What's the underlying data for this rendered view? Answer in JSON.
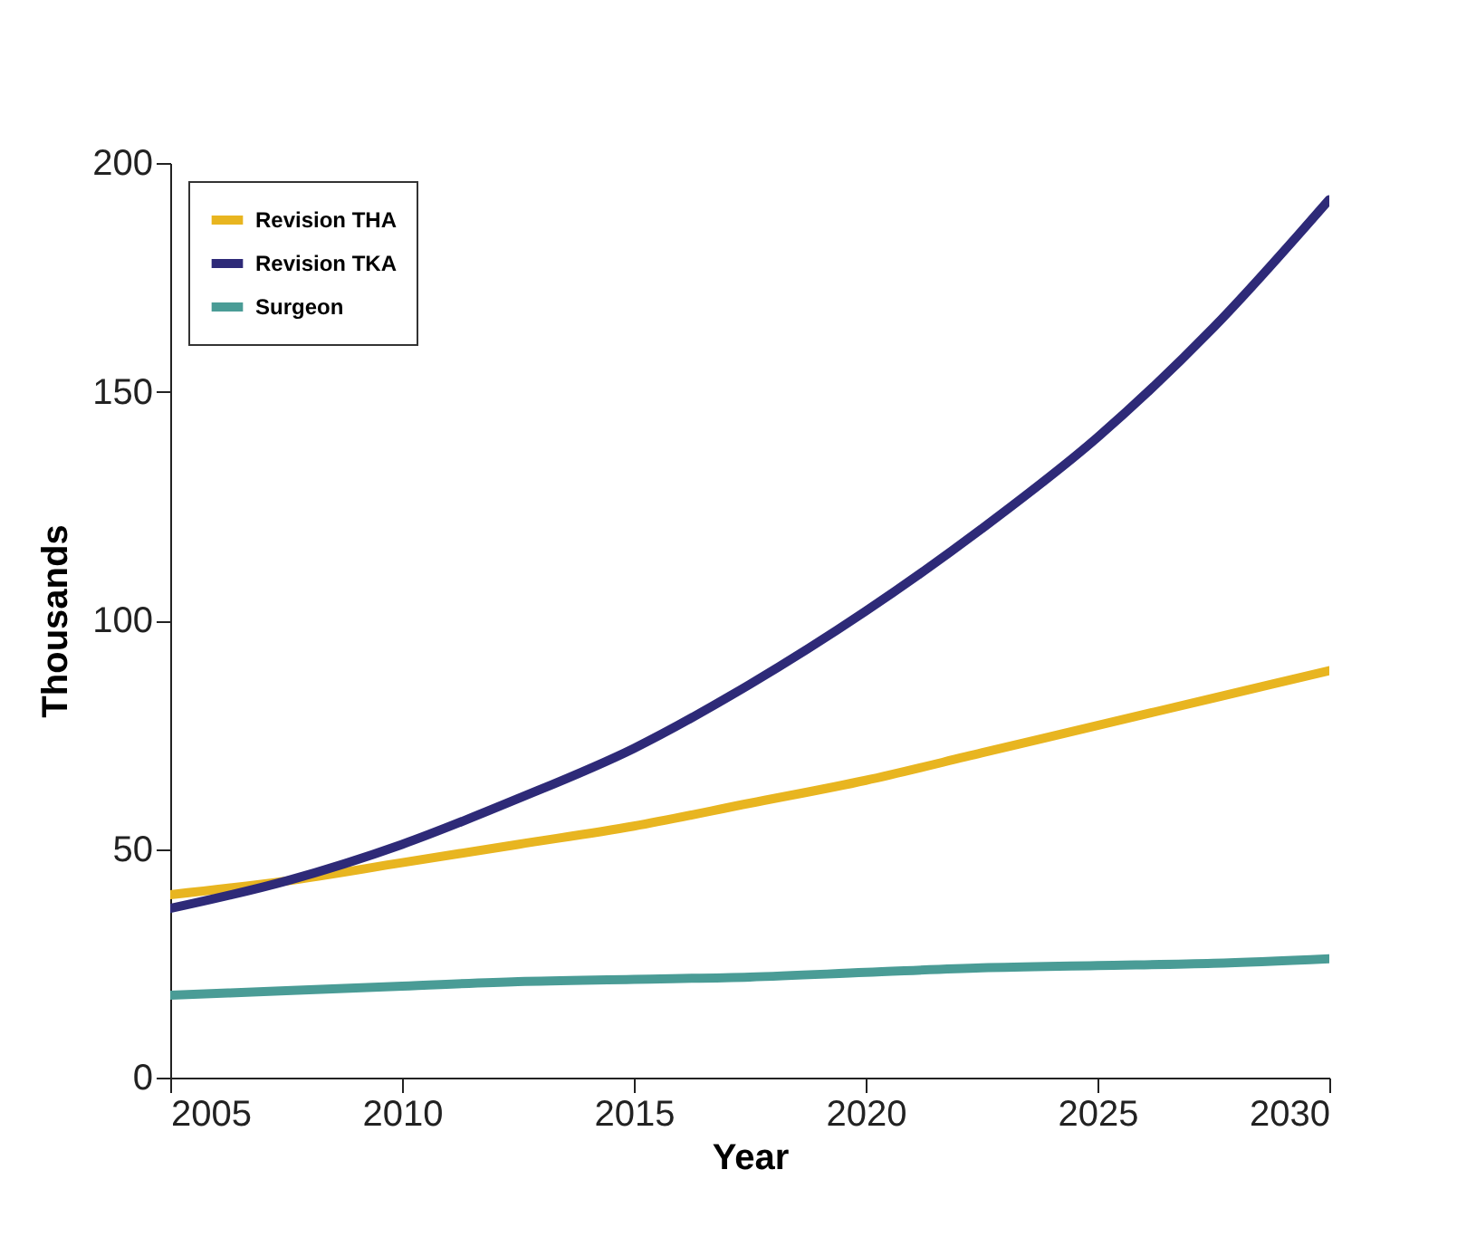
{
  "chart_data": {
    "type": "line",
    "xlabel": "Year",
    "ylabel": "Thousands",
    "x": [
      2005,
      2007.5,
      2010,
      2012.5,
      2015,
      2017.5,
      2020,
      2022.5,
      2025,
      2027.5,
      2030
    ],
    "series": [
      {
        "name": "Revision THA",
        "color": "#e8b520",
        "values": [
          40,
          43,
          47,
          51,
          55,
          60,
          65,
          71,
          77,
          83,
          89
        ]
      },
      {
        "name": "Revision TKA",
        "color": "#2e2a78",
        "values": [
          37,
          43,
          51,
          61,
          72,
          86,
          102,
          120,
          140,
          164,
          192
        ]
      },
      {
        "name": "Surgeon",
        "color": "#4a9c96",
        "values": [
          18,
          19,
          20,
          21,
          21.5,
          22,
          23,
          24,
          24.5,
          25,
          26
        ]
      }
    ],
    "xlim": [
      2005,
      2030
    ],
    "xticks": [
      2005,
      2010,
      2015,
      2020,
      2025,
      2030
    ],
    "ylim": [
      0,
      200
    ],
    "yticks": [
      0,
      50,
      100,
      150,
      200
    ],
    "grid": false,
    "legend": "top left",
    "marker": "none",
    "line_style": "solid"
  }
}
